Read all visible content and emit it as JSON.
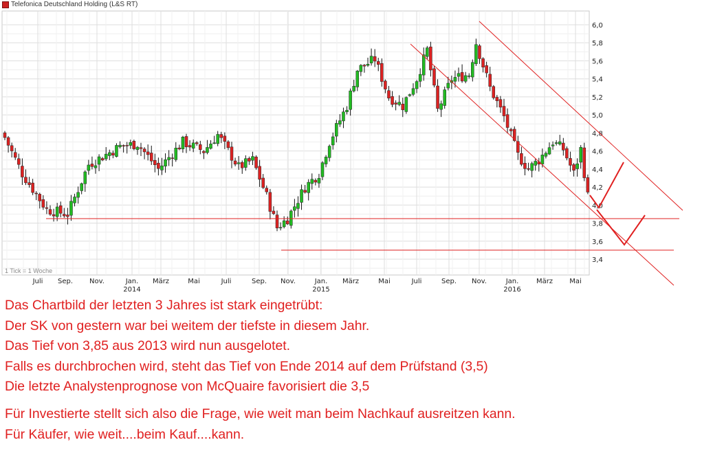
{
  "legend": {
    "label": "Telefonica Deutschland Holding (L&S RT)",
    "color": "#cc2222"
  },
  "tick_note": "1 Tick = 1 Woche",
  "comment_lines": [
    "Das Chartbild der letzten 3 Jahres ist stark eingetrübt:",
    "Der SK von gestern war bei weitem der tiefste in diesem Jahr.",
    "Das Tief von 3,85 aus 2013 wird nun ausgelotet.",
    "Falls es durchbrochen wird, steht das Tief von Ende 2014 auf dem Prüfstand (3,5)",
    "Die letzte Analystenprognose von McQuaire favorisiert die 3,5"
  ],
  "comment_lines_2": [
    "Für Investierte stellt sich also die Frage, wie weit man beim Nachkauf ausreitzen kann.",
    "Für Käufer, wie weit....beim Kauf....kann."
  ],
  "colors": {
    "up": "#22bb22",
    "down": "#dd2222",
    "annotation": "#e02020",
    "grid": "#dedede"
  },
  "chart_data": {
    "type": "candlestick",
    "interval": "weekly",
    "ylim": [
      3.25,
      6.1
    ],
    "y_ticks": [
      3.4,
      3.6,
      3.8,
      4.0,
      4.2,
      4.4,
      4.6,
      4.8,
      5.0,
      5.2,
      5.4,
      5.6,
      5.8,
      6.0
    ],
    "y_tick_labels": [
      "3,4",
      "3,6",
      "3,8",
      "4,0",
      "4,2",
      "4,4",
      "4,6",
      "4,8",
      "5,0",
      "5,2",
      "5,4",
      "5,6",
      "5,8",
      "6,0"
    ],
    "x_tick_labels": [
      "Juli",
      "Sep.",
      "Nov.",
      "Jan.",
      "März",
      "Mai",
      "Juli",
      "Sep.",
      "Nov.",
      "Jan.",
      "März",
      "Mai",
      "Juli",
      "Sep.",
      "Nov.",
      "Jan.",
      "März",
      "Mai"
    ],
    "year_labels": [
      {
        "after_tick": 3,
        "label": "2014"
      },
      {
        "after_tick": 9,
        "label": "2015"
      },
      {
        "after_tick": 15,
        "label": "2016"
      }
    ],
    "key_points": [
      {
        "week": 0,
        "close": 4.75
      },
      {
        "week": 5,
        "close": 4.35
      },
      {
        "week": 12,
        "close": 3.95
      },
      {
        "week": 18,
        "close": 3.9
      },
      {
        "week": 24,
        "close": 4.45
      },
      {
        "week": 33,
        "close": 4.65
      },
      {
        "week": 38,
        "close": 4.68
      },
      {
        "week": 44,
        "close": 4.4
      },
      {
        "week": 51,
        "close": 4.7
      },
      {
        "week": 57,
        "close": 4.6
      },
      {
        "week": 61,
        "close": 4.78
      },
      {
        "week": 67,
        "close": 4.42
      },
      {
        "week": 71,
        "close": 4.5
      },
      {
        "week": 75,
        "close": 4.1
      },
      {
        "week": 78,
        "close": 3.75
      },
      {
        "week": 81,
        "close": 3.85
      },
      {
        "week": 86,
        "close": 4.2
      },
      {
        "week": 90,
        "close": 4.35
      },
      {
        "week": 93,
        "close": 4.7
      },
      {
        "week": 98,
        "close": 5.1
      },
      {
        "week": 101,
        "close": 5.5
      },
      {
        "week": 106,
        "close": 5.62
      },
      {
        "week": 110,
        "close": 5.2
      },
      {
        "week": 114,
        "close": 5.1
      },
      {
        "week": 118,
        "close": 5.4
      },
      {
        "week": 121,
        "close": 5.72
      },
      {
        "week": 124,
        "close": 5.05
      },
      {
        "week": 128,
        "close": 5.4
      },
      {
        "week": 133,
        "close": 5.45
      },
      {
        "week": 135,
        "close": 5.8
      },
      {
        "week": 139,
        "close": 5.3
      },
      {
        "week": 143,
        "close": 4.98
      },
      {
        "week": 147,
        "close": 4.55
      },
      {
        "week": 150,
        "close": 4.4
      },
      {
        "week": 153,
        "close": 4.5
      },
      {
        "week": 157,
        "close": 4.7
      },
      {
        "week": 160,
        "close": 4.62
      },
      {
        "week": 163,
        "close": 4.35
      },
      {
        "week": 165,
        "close": 4.62
      },
      {
        "week": 167,
        "close": 4.1
      }
    ],
    "horizontal_lines": [
      3.85,
      3.5
    ],
    "annotations": "red support lines at 3,85 and 3,5; two descending red trend channel lines; two red check-mark arrows",
    "grid": true
  }
}
